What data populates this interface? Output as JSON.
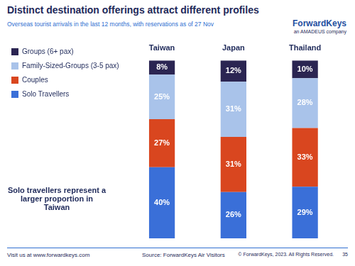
{
  "chart_data": {
    "type": "bar",
    "title": "Distinct destination offerings attract different profiles",
    "subtitle": "Overseas tourist arrivals in the last 12 months, with reservations as of 27 Nov",
    "categories": [
      "Taiwan",
      "Japan",
      "Thailand"
    ],
    "series": [
      {
        "name": "Solo Travellers",
        "color": "#3a6fd8",
        "values": [
          40,
          26,
          29
        ],
        "value_labels": [
          "40%",
          "26%",
          "29%"
        ]
      },
      {
        "name": "Couples",
        "color": "#d9461f",
        "values": [
          27,
          31,
          33
        ],
        "value_labels": [
          "27%",
          "31%",
          "33%"
        ]
      },
      {
        "name": "Family-Sized-Groups (3-5 pax)",
        "color": "#a9c3ea",
        "values": [
          25,
          31,
          28
        ],
        "value_labels": [
          "25%",
          "31%",
          "28%"
        ]
      },
      {
        "name": "Groups (6+ pax)",
        "color": "#2b2552",
        "values": [
          8,
          12,
          10
        ],
        "value_labels": [
          "8%",
          "12%",
          "10%"
        ]
      }
    ],
    "ylim": [
      0,
      100
    ],
    "stacked": true,
    "data_labels": true,
    "legend": "left",
    "grid": false,
    "tick_labels": "x",
    "annotations": [
      "Solo travellers represent a larger proportion in Taiwan",
      "ForwardKeys",
      "an AMADEUS company",
      "Visit us at www.forwardkeys.com",
      "Source: ForwardKeys Air Visitors",
      "© ForwardKeys, 2023. All Rights Reserved.",
      "35"
    ]
  }
}
